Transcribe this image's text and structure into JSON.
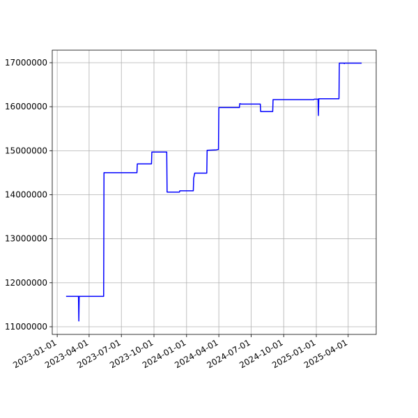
{
  "chart_data": {
    "type": "line",
    "x": [
      "2023-01-26",
      "2023-03-02",
      "2023-03-03",
      "2023-03-04",
      "2023-05-12",
      "2023-05-13",
      "2023-08-14",
      "2023-08-15",
      "2023-09-24",
      "2023-09-25",
      "2023-11-06",
      "2023-11-07",
      "2023-12-12",
      "2023-12-13",
      "2024-01-20",
      "2024-01-21",
      "2024-01-24",
      "2024-02-27",
      "2024-02-28",
      "2024-03-25",
      "2024-03-31",
      "2024-04-01",
      "2024-05-29",
      "2024-05-30",
      "2024-06-03",
      "2024-07-27",
      "2024-07-28",
      "2024-08-31",
      "2024-09-01",
      "2024-12-25",
      "2024-12-26",
      "2025-01-06",
      "2025-01-07",
      "2025-01-08",
      "2025-03-06",
      "2025-03-07",
      "2025-03-20",
      "2025-03-21",
      "2025-03-22",
      "2025-05-09"
    ],
    "series": [
      {
        "color": "#0000ff",
        "values": [
          11690000,
          11690000,
          11130000,
          11690000,
          11690000,
          14500000,
          14500000,
          14700000,
          14700000,
          14970000,
          14970000,
          14060000,
          14060000,
          14090000,
          14090000,
          14370000,
          14490000,
          14490000,
          15010000,
          15020000,
          15030000,
          15980000,
          15980000,
          16070000,
          16060000,
          16060000,
          15890000,
          15890000,
          16160000,
          16160000,
          16170000,
          16170000,
          15800000,
          16180000,
          16180000,
          16990000,
          16990000,
          16980000,
          16990000,
          16990000
        ]
      }
    ],
    "xlim": [
      "2022-12-18",
      "2025-06-19"
    ],
    "xticks": [
      "2023-01-01",
      "2023-04-01",
      "2023-07-01",
      "2023-10-01",
      "2024-01-01",
      "2024-04-01",
      "2024-07-01",
      "2024-10-01",
      "2025-01-01",
      "2025-04-01"
    ],
    "ylim": [
      10826000,
      17285000
    ],
    "yticks": [
      11000000,
      12000000,
      13000000,
      14000000,
      15000000,
      16000000,
      17000000
    ],
    "grid": true
  }
}
